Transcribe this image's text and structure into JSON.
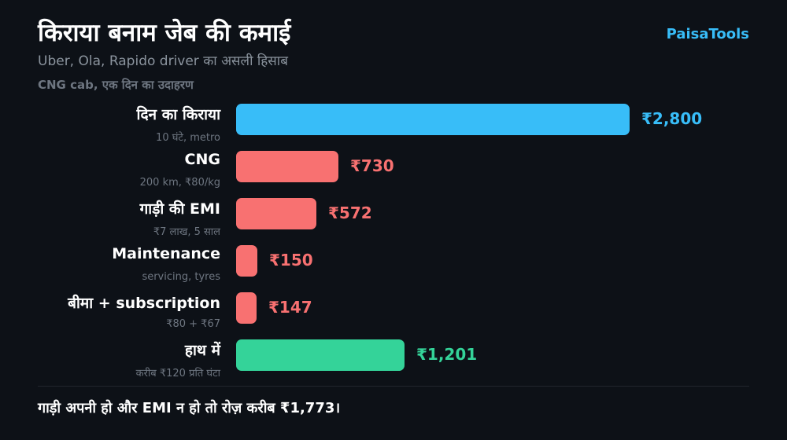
{
  "header": {
    "title": "किराया बनाम जेब की कमाई",
    "subtitle": "Uber, Ola, Rapido driver का असली हिसाब",
    "caption": "CNG cab, एक दिन का उदाहरण",
    "brand": "PaisaTools"
  },
  "footer": {
    "note": "गाड़ी अपनी हो और EMI न हो तो रोज़ करीब ₹1,773।"
  },
  "colors": {
    "income": "#38bdf8",
    "cost": "#f87171",
    "net": "#34d399"
  },
  "chart_data": {
    "type": "bar",
    "orientation": "horizontal",
    "title": "किराया बनाम जेब की कमाई",
    "subtitle": "Uber, Ola, Rapido driver का असली हिसाब",
    "categories": [
      "दिन का किराया",
      "CNG",
      "गाड़ी की EMI",
      "Maintenance",
      "बीमा + subscription",
      "हाथ में"
    ],
    "sublabels": [
      "10 घंटे, metro",
      "200 km, ₹80/kg",
      "₹7 लाख, 5 साल",
      "servicing, tyres",
      "₹80 + ₹67",
      "करीब ₹120 प्रति घंटा"
    ],
    "values": [
      2800,
      730,
      572,
      150,
      147,
      1201
    ],
    "value_labels": [
      "₹2,800",
      "₹730",
      "₹572",
      "₹150",
      "₹147",
      "₹1,201"
    ],
    "kinds": [
      "income",
      "cost",
      "cost",
      "cost",
      "cost",
      "net"
    ],
    "xlim": [
      0,
      2800
    ],
    "grid": false,
    "legend": "none"
  }
}
